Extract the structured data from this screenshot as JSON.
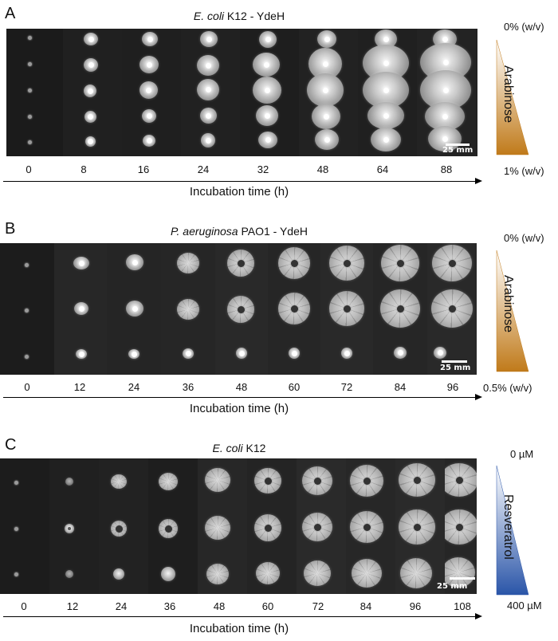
{
  "panels": [
    {
      "letter": "A",
      "title_italic": "E. coli",
      "title_rest": " K12 - YdeH",
      "time_labels": [
        "0",
        "8",
        "16",
        "24",
        "32",
        "48",
        "64",
        "88"
      ],
      "axis_title": "Incubation time (h)",
      "gradient_label": "Arabinose",
      "gradient_top": "0% (w/v)",
      "gradient_bottom": "1% (w/v)",
      "gradient_color": "#c07a1a",
      "scale_bar": "25 mm"
    },
    {
      "letter": "B",
      "title_italic": "P. aeruginosa",
      "title_rest": " PAO1 - YdeH",
      "time_labels": [
        "0",
        "12",
        "24",
        "36",
        "48",
        "60",
        "72",
        "84",
        "96"
      ],
      "axis_title": "Incubation time (h)",
      "gradient_label": "Arabinose",
      "gradient_top": "0% (w/v)",
      "gradient_bottom": "0.5% (w/v)",
      "gradient_color": "#c07a1a",
      "scale_bar": "25 mm"
    },
    {
      "letter": "C",
      "title_italic": "E. coli",
      "title_rest": " K12",
      "time_labels": [
        "0",
        "12",
        "24",
        "36",
        "48",
        "60",
        "72",
        "84",
        "96",
        "108"
      ],
      "axis_title": "Incubation time (h)",
      "gradient_label": "Resveratrol",
      "gradient_top": "0 µM",
      "gradient_bottom": "400 µM",
      "gradient_color": "#2a55a8",
      "scale_bar": "25 mm"
    }
  ]
}
